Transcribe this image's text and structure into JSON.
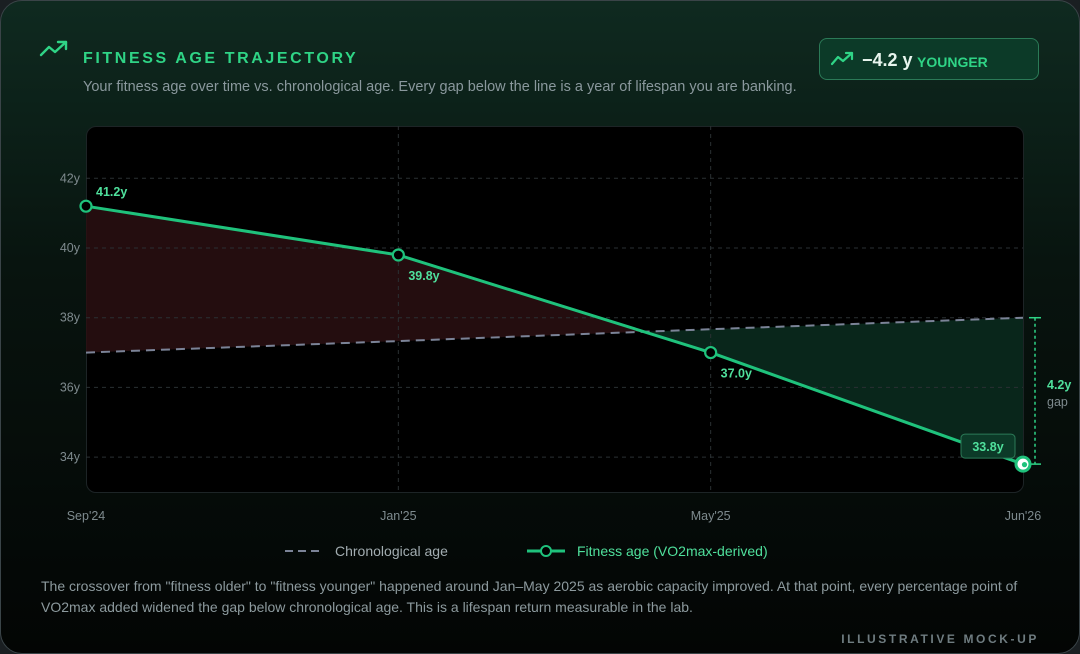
{
  "header": {
    "title": "FITNESS AGE TRAJECTORY",
    "subtitle": "Your fitness age over time vs. chronological age. Every gap below the line is a year of lifespan you are banking.",
    "title_icon": "trending-up-icon"
  },
  "badge": {
    "value": "−4.2 y",
    "label": "YOUNGER",
    "icon": "trending-up-icon"
  },
  "chart_data": {
    "type": "line",
    "x": [
      "Sep'24",
      "Jan'25",
      "May'25",
      "Jun'26"
    ],
    "ylim": [
      33,
      43.5
    ],
    "yticks": [
      34,
      36,
      38,
      40,
      42
    ],
    "ytick_suffix": "y",
    "grid": true,
    "series": [
      {
        "name": "Chronological age",
        "style": "dashed",
        "color": "#7b8397",
        "values": [
          37.0,
          37.33,
          37.67,
          38.0
        ]
      },
      {
        "name": "Fitness age (VO2max-derived)",
        "style": "solid-markers",
        "color": "#1fc27c",
        "values": [
          41.2,
          39.8,
          37.0,
          33.8
        ],
        "labels": [
          "41.2y",
          "39.8y",
          "37.0y",
          "33.8y"
        ]
      }
    ],
    "gap_annotation": {
      "value": "4.2y",
      "label": "gap"
    },
    "legend_position": "bottom"
  },
  "colors": {
    "accent": "#2fd486",
    "fitness_line": "#1fc27c",
    "chronological_line": "#7b8397",
    "above_fill": "#2a0f12",
    "below_fill": "#0a2a1e"
  },
  "note": "The crossover from \"fitness older\" to \"fitness younger\" happened around Jan–May 2025 as aerobic capacity improved. At that point, every percentage point of VO2max added widened the gap below chronological age. This is a lifespan return measurable in the lab.",
  "footer": "ILLUSTRATIVE MOCK-UP"
}
